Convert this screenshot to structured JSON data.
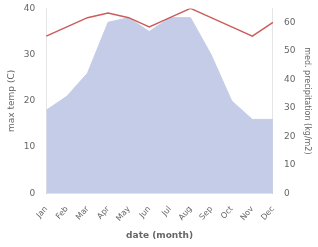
{
  "chart_data": {
    "type": "line",
    "xlabel": "date (month)",
    "ylabel": "max temp (C)",
    "y2label": "med. precipitation (kg/m2)",
    "categories": [
      "Jan",
      "Feb",
      "Mar",
      "Apr",
      "May",
      "Jun",
      "Jul",
      "Aug",
      "Sep",
      "Oct",
      "Nov",
      "Dec"
    ],
    "series": [
      {
        "type": "area",
        "color": "#c5cce8",
        "values": [
          18,
          21,
          26,
          37,
          38,
          35,
          38,
          38,
          30,
          20,
          16,
          16
        ]
      },
      {
        "type": "line",
        "color": "#cd5c5c",
        "values": [
          34,
          36,
          38,
          39,
          38,
          36,
          38,
          40,
          38,
          36,
          34,
          37
        ]
      }
    ],
    "ylim": [
      0,
      40
    ],
    "yticks": [
      0,
      10,
      20,
      30,
      40
    ],
    "y2lim": [
      0,
      65
    ],
    "y2ticks": [
      0,
      10,
      20,
      30,
      40,
      50,
      60
    ],
    "grid": false
  }
}
